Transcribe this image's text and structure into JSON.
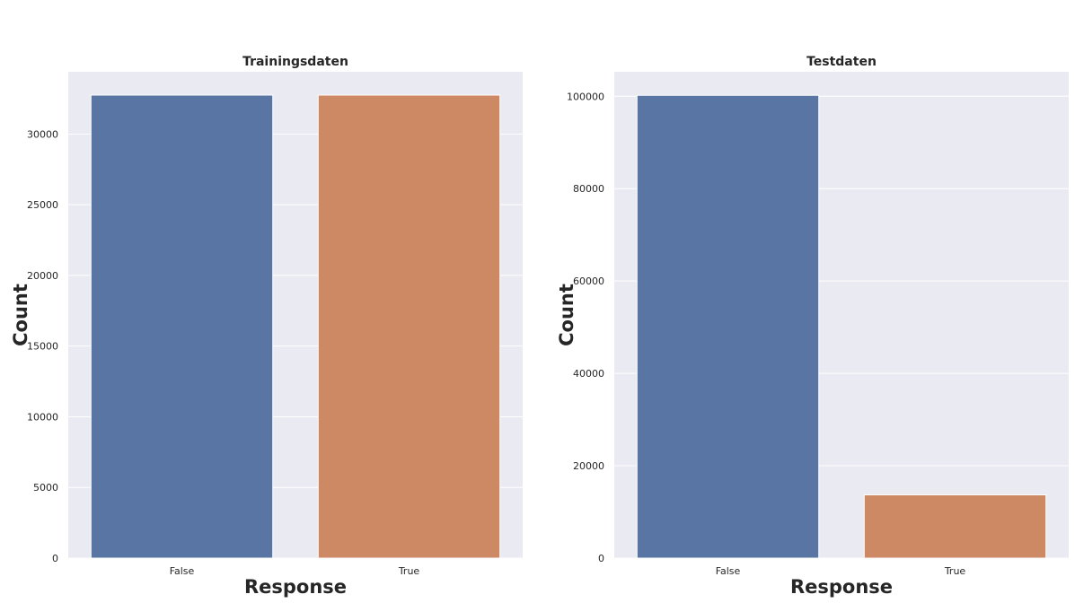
{
  "colors": {
    "background": "#EAEAF2",
    "grid": "#FFFFFF",
    "bar_false": "#5875A4",
    "bar_true": "#CC8963",
    "text": "#262626"
  },
  "chart_data": [
    {
      "type": "bar",
      "title": "Trainingsdaten",
      "xlabel": "Response",
      "ylabel": "Count",
      "categories": [
        "False",
        "True"
      ],
      "values": [
        32750,
        32750
      ],
      "ylim": [
        0,
        34400
      ],
      "yticks": [
        0,
        5000,
        10000,
        15000,
        20000,
        25000,
        30000
      ],
      "grid": true,
      "bar_colors": [
        "#5875A4",
        "#CC8963"
      ]
    },
    {
      "type": "bar",
      "title": "Testdaten",
      "xlabel": "Response",
      "ylabel": "Count",
      "categories": [
        "False",
        "True"
      ],
      "values": [
        100200,
        13700
      ],
      "ylim": [
        0,
        105300
      ],
      "yticks": [
        0,
        20000,
        40000,
        60000,
        80000,
        100000
      ],
      "grid": true,
      "bar_colors": [
        "#5875A4",
        "#CC8963"
      ]
    }
  ]
}
